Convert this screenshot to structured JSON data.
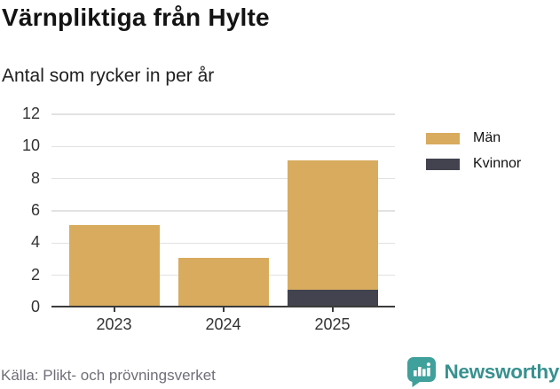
{
  "header": {
    "title": "Värnpliktiga från Hylte",
    "subtitle": "Antal som rycker in per år"
  },
  "footer": {
    "source": "Källa: Plikt- och prövningsverket",
    "brand": "Newsworthy",
    "brand_color": "#37918e"
  },
  "chart_data": {
    "type": "bar",
    "stacked": true,
    "categories": [
      "2023",
      "2024",
      "2025"
    ],
    "series": [
      {
        "name": "Män",
        "color": "#d8ab5e",
        "values": [
          5,
          3,
          8
        ]
      },
      {
        "name": "Kvinnor",
        "color": "#42434f",
        "values": [
          0,
          0,
          1
        ]
      }
    ],
    "stack_bottom_to_top": [
      "Kvinnor",
      "Män"
    ],
    "stacked_totals": [
      5,
      3,
      9
    ],
    "title": "Värnpliktiga från Hylte",
    "subtitle": "Antal som rycker in per år",
    "xlabel": "",
    "ylabel": "",
    "yticks": [
      0,
      2,
      4,
      6,
      8,
      10,
      12
    ],
    "ylim": [
      0,
      12
    ],
    "grid": true,
    "gridline_color": "#e2e2e2",
    "axis_color": "#3b3b3b",
    "legend_position": "right"
  }
}
